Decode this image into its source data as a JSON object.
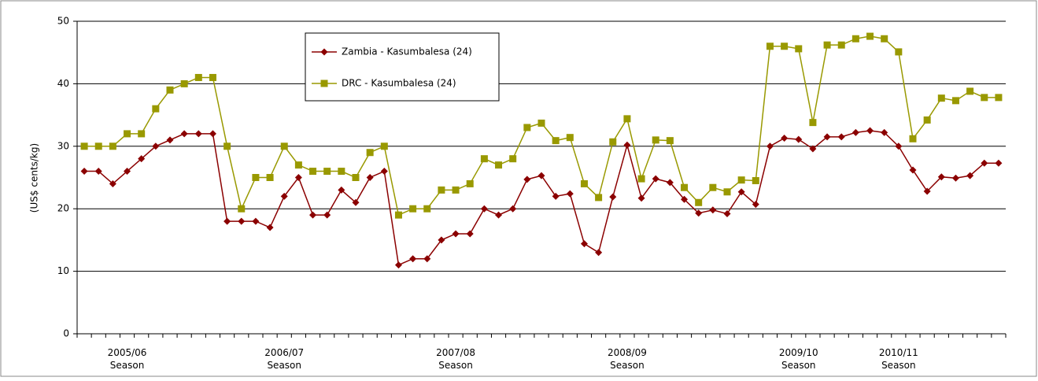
{
  "chart_data": {
    "type": "line",
    "y_label": "(US$ cents/kg)",
    "categories": [
      null,
      null,
      null,
      "2005/06 Season",
      null,
      null,
      null,
      null,
      null,
      null,
      null,
      null,
      null,
      null,
      "2006/07 Season",
      null,
      null,
      null,
      null,
      null,
      null,
      null,
      null,
      null,
      null,
      null,
      "2007/08 Season",
      null,
      null,
      null,
      null,
      null,
      null,
      null,
      null,
      null,
      null,
      null,
      "2008/09 Season",
      null,
      null,
      null,
      null,
      null,
      null,
      null,
      null,
      null,
      null,
      null,
      "2009/10 Season",
      null,
      null,
      null,
      null,
      null,
      null,
      "2010/11 Season",
      null,
      null,
      null,
      null,
      null,
      null,
      null
    ],
    "series": [
      {
        "name": "Zambia - Kasumbalesa (24)",
        "color": "#8b0000",
        "marker": "diamond",
        "values": [
          26,
          26,
          24,
          26,
          28,
          30,
          31,
          32,
          32,
          32,
          18,
          18,
          18,
          17,
          22,
          25,
          19,
          19,
          23,
          21,
          25,
          26,
          11,
          12,
          12,
          15,
          16,
          16,
          20,
          19,
          20,
          24.7,
          25.3,
          22,
          22.4,
          14.4,
          13,
          21.9,
          30.2,
          21.7,
          24.8,
          24.2,
          21.5,
          19.3,
          19.8,
          19.2,
          22.7,
          20.7,
          30,
          31.3,
          31.1,
          29.6,
          31.5,
          31.5,
          32.2,
          32.5,
          32.2,
          30,
          26.2,
          22.8,
          25.1,
          24.9,
          25.3,
          27.3,
          27.3
        ]
      },
      {
        "name": "DRC - Kasumbalesa (24)",
        "color": "#999900",
        "marker": "square",
        "values": [
          30,
          30,
          30,
          32,
          32,
          36,
          39,
          40,
          41,
          41,
          30,
          20,
          25,
          25,
          30,
          27,
          26,
          26,
          26,
          25,
          29,
          30,
          19,
          20,
          20,
          23,
          23,
          24,
          28,
          27,
          28,
          33,
          33.7,
          30.9,
          31.4,
          24,
          21.8,
          30.7,
          34.4,
          24.8,
          31,
          30.9,
          23.4,
          21,
          23.4,
          22.7,
          24.6,
          24.5,
          46,
          46,
          45.6,
          33.8,
          46.2,
          46.2,
          47.2,
          47.6,
          47.2,
          45.1,
          31.2,
          34.2,
          37.7,
          37.3,
          38.8,
          37.8,
          37.8
        ]
      }
    ],
    "ylim": [
      0,
      50
    ],
    "yticks": [
      0,
      10,
      20,
      30,
      40,
      50
    ],
    "grid": true
  }
}
